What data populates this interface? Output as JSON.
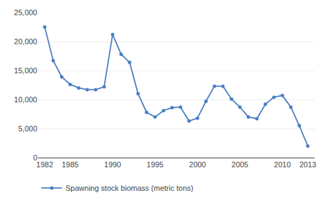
{
  "chart_data": {
    "type": "line",
    "x": [
      1982,
      1983,
      1984,
      1985,
      1986,
      1987,
      1988,
      1989,
      1990,
      1991,
      1992,
      1993,
      1994,
      1995,
      1996,
      1997,
      1998,
      1999,
      2000,
      2001,
      2002,
      2003,
      2004,
      2005,
      2006,
      2007,
      2008,
      2009,
      2010,
      2011,
      2012,
      2013
    ],
    "series": [
      {
        "name": "Spawning stock biomass (metric tons)",
        "color": "#4a7fc1",
        "marker": "circle",
        "line_style": "solid",
        "values": [
          22500,
          16700,
          13900,
          12600,
          12000,
          11700,
          11700,
          12200,
          21200,
          17800,
          16400,
          11000,
          7800,
          7000,
          8100,
          8600,
          8700,
          6300,
          6800,
          9700,
          12300,
          12300,
          10100,
          8700,
          7000,
          6700,
          9200,
          10400,
          10700,
          8700,
          5500,
          2000
        ]
      }
    ],
    "xlim": [
      1981.2,
      2013.8
    ],
    "xticks": [
      1982,
      1985,
      1990,
      1995,
      2000,
      2005,
      2010,
      2013
    ],
    "ylim": [
      0,
      25000
    ],
    "yticks": [
      0,
      {
        "value": 5000,
        "label": "5,000"
      },
      {
        "value": 10000,
        "label": "10,000"
      },
      {
        "value": 15000,
        "label": "15,000"
      },
      {
        "value": 20000,
        "label": "20,000"
      },
      {
        "value": 25000,
        "label": "25,000"
      }
    ],
    "grid": true,
    "legend": "bottom"
  }
}
